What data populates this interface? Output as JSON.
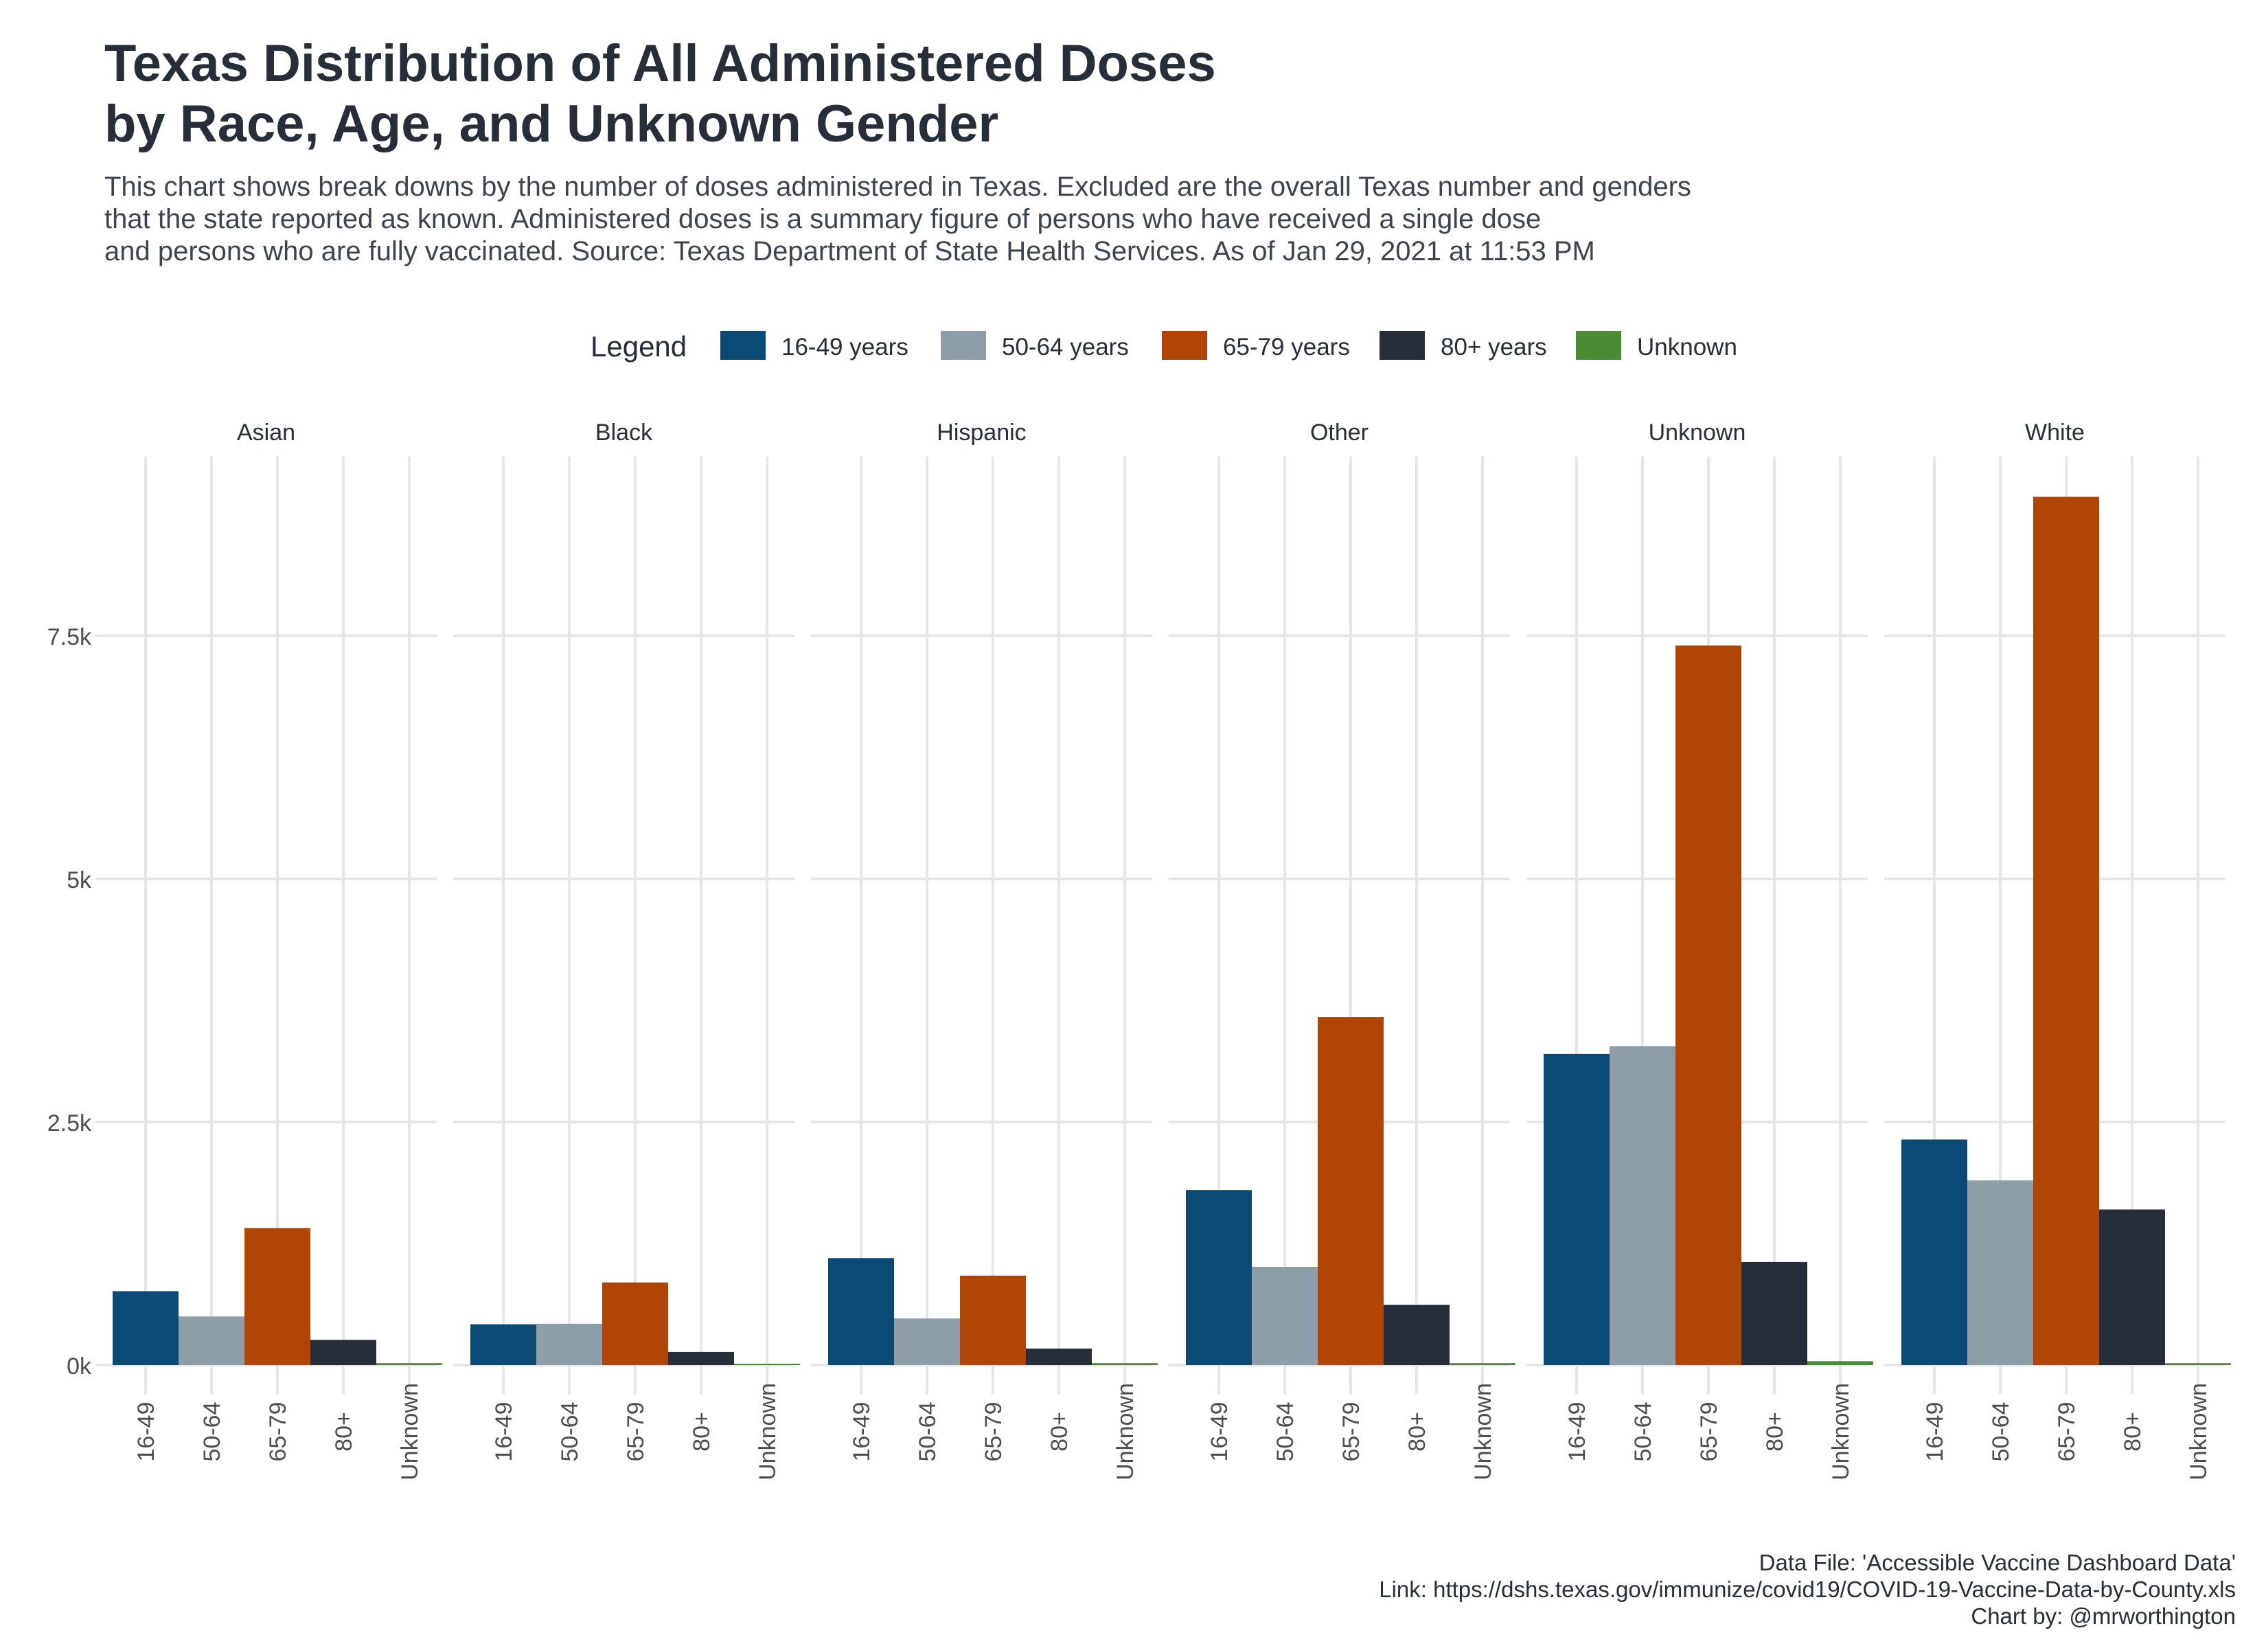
{
  "chart_data": {
    "type": "bar",
    "title_lines": [
      "Texas Distribution of All Administered Doses",
      "by Race, Age, and Unknown Gender"
    ],
    "subtitle_lines": [
      "This chart shows break downs by the number of doses administered in Texas. Excluded are the overall Texas number and genders",
      "that the state reported as known. Administered doses is a summary figure of persons who have received a single dose",
      "and persons who are fully vaccinated. Source: Texas Department of State Health Services. As of Jan 29, 2021 at 11:53 PM"
    ],
    "legend": {
      "title": "Legend",
      "placement": "top-center",
      "entries": [
        {
          "label": "16-49 years",
          "color": "#0b4a74"
        },
        {
          "label": "50-64 years",
          "color": "#8d9ea9"
        },
        {
          "label": "65-79 years",
          "color": "#b04506"
        },
        {
          "label": "80+ years",
          "color": "#262e39"
        },
        {
          "label": "Unknown",
          "color": "#4a8c32"
        }
      ]
    },
    "categories": [
      "16-49",
      "50-64",
      "65-79",
      "80+",
      "Unknown"
    ],
    "y_ticks": [
      {
        "value": 0,
        "label": "0k"
      },
      {
        "value": 2500,
        "label": "2.5k"
      },
      {
        "value": 5000,
        "label": "5k"
      },
      {
        "value": 7500,
        "label": "7.5k"
      }
    ],
    "ylim": [
      0,
      9300
    ],
    "grid": true,
    "facets": [
      {
        "name": "Asian",
        "values": [
          760,
          500,
          1410,
          260,
          20
        ]
      },
      {
        "name": "Black",
        "values": [
          420,
          425,
          850,
          135,
          8
        ]
      },
      {
        "name": "Hispanic",
        "values": [
          1100,
          480,
          920,
          170,
          20
        ]
      },
      {
        "name": "Other",
        "values": [
          1800,
          1010,
          3580,
          620,
          20
        ]
      },
      {
        "name": "Unknown",
        "values": [
          3200,
          3280,
          7400,
          1060,
          40
        ]
      },
      {
        "name": "White",
        "values": [
          2320,
          1900,
          8930,
          1600,
          20
        ]
      }
    ],
    "caption_lines": [
      "Data File: 'Accessible Vaccine Dashboard Data'",
      "Link: https://dshs.texas.gov/immunize/covid19/COVID-19-Vaccine-Data-by-County.xls",
      "Chart by: @mrworthington"
    ]
  }
}
